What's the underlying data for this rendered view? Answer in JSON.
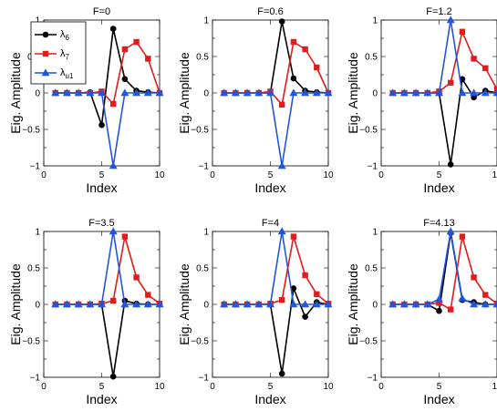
{
  "chart_data": [
    {
      "type": "line",
      "title": "F=0",
      "xlabel": "Index",
      "ylabel": "Eig. Amplitude",
      "xlim": [
        0,
        10
      ],
      "ylim": [
        -1,
        1
      ],
      "x": [
        1,
        2,
        3,
        4,
        5,
        6,
        7,
        8,
        9,
        10
      ],
      "series": [
        {
          "name": "λ6",
          "color": "#000000",
          "marker": "circle",
          "values": [
            0,
            0,
            0,
            0.01,
            -0.44,
            0.88,
            0.19,
            0.03,
            0.01,
            0
          ]
        },
        {
          "name": "λ7",
          "color": "#e41a1c",
          "marker": "square",
          "values": [
            0,
            0,
            0,
            0,
            0.02,
            -0.15,
            0.6,
            0.7,
            0.47,
            0
          ]
        },
        {
          "name": "λu1",
          "color": "#2255dd",
          "marker": "triangle",
          "values": [
            0,
            0,
            0,
            0,
            0,
            -1,
            0,
            0,
            0,
            0
          ]
        }
      ],
      "legend": "top-left"
    },
    {
      "type": "line",
      "title": "F=0.6",
      "xlabel": "Index",
      "ylabel": "Eig. Amplitude",
      "xlim": [
        0,
        10
      ],
      "ylim": [
        -1,
        1
      ],
      "x": [
        1,
        2,
        3,
        4,
        5,
        6,
        7,
        8,
        9,
        10
      ],
      "series": [
        {
          "name": "λ6",
          "color": "#000000",
          "marker": "circle",
          "values": [
            0,
            0,
            0,
            0,
            0,
            0.98,
            0.2,
            0.03,
            0.01,
            0
          ]
        },
        {
          "name": "λ7",
          "color": "#e41a1c",
          "marker": "square",
          "values": [
            0,
            0,
            0,
            0,
            0.02,
            -0.16,
            0.7,
            0.6,
            0.35,
            0
          ]
        },
        {
          "name": "λu1",
          "color": "#2255dd",
          "marker": "triangle",
          "values": [
            0,
            0,
            0,
            0,
            0,
            -1,
            0,
            0,
            0,
            0
          ]
        }
      ]
    },
    {
      "type": "line",
      "title": "F=1.2",
      "xlabel": "Index",
      "ylabel": "Eig. Amplitude",
      "xlim": [
        0,
        10
      ],
      "ylim": [
        -1,
        1
      ],
      "x": [
        1,
        2,
        3,
        4,
        5,
        6,
        7,
        8,
        9,
        10
      ],
      "series": [
        {
          "name": "λ6",
          "color": "#000000",
          "marker": "circle",
          "values": [
            0,
            0,
            0,
            0,
            0,
            -0.98,
            0.19,
            -0.06,
            0.03,
            0
          ]
        },
        {
          "name": "λ7",
          "color": "#e41a1c",
          "marker": "square",
          "values": [
            0,
            0,
            0,
            0,
            0.02,
            0.14,
            0.84,
            0.47,
            0.34,
            0.05
          ]
        },
        {
          "name": "λu1",
          "color": "#2255dd",
          "marker": "triangle",
          "values": [
            0,
            0,
            0,
            0,
            0,
            1,
            0,
            0,
            0,
            0
          ]
        }
      ]
    },
    {
      "type": "line",
      "title": "F=3.5",
      "xlabel": "Index",
      "ylabel": "Eig. Amplitude",
      "xlim": [
        0,
        10
      ],
      "ylim": [
        -1,
        1
      ],
      "x": [
        1,
        2,
        3,
        4,
        5,
        6,
        7,
        8,
        9,
        10
      ],
      "series": [
        {
          "name": "λ6",
          "color": "#000000",
          "marker": "circle",
          "values": [
            0,
            0,
            0,
            0,
            0,
            -0.99,
            0.05,
            0.01,
            0,
            0
          ]
        },
        {
          "name": "λ7",
          "color": "#e41a1c",
          "marker": "square",
          "values": [
            0,
            0,
            0,
            0,
            0.01,
            0.05,
            0.93,
            0.37,
            0.13,
            0.01
          ]
        },
        {
          "name": "λu1",
          "color": "#2255dd",
          "marker": "triangle",
          "values": [
            0,
            0,
            0,
            0,
            0,
            1,
            0,
            0,
            0,
            0
          ]
        }
      ]
    },
    {
      "type": "line",
      "title": "F=4",
      "xlabel": "Index",
      "ylabel": "Eig. Amplitude",
      "xlim": [
        0,
        10
      ],
      "ylim": [
        -1,
        1
      ],
      "x": [
        1,
        2,
        3,
        4,
        5,
        6,
        7,
        8,
        9,
        10
      ],
      "series": [
        {
          "name": "λ6",
          "color": "#000000",
          "marker": "circle",
          "values": [
            0,
            0,
            0,
            0,
            0,
            -0.95,
            0.22,
            -0.17,
            0.03,
            0
          ]
        },
        {
          "name": "λ7",
          "color": "#e41a1c",
          "marker": "square",
          "values": [
            0,
            0,
            0,
            0,
            0.01,
            0.06,
            0.93,
            0.4,
            0.14,
            0.01
          ]
        },
        {
          "name": "λu1",
          "color": "#2255dd",
          "marker": "triangle",
          "values": [
            0,
            0,
            0,
            0,
            0,
            1,
            0,
            0,
            0,
            0
          ]
        }
      ]
    },
    {
      "type": "line",
      "title": "F=4.13",
      "xlabel": "Index",
      "ylabel": "Eig. Amplitude",
      "xlim": [
        0,
        10
      ],
      "ylim": [
        -1,
        1
      ],
      "x": [
        1,
        2,
        3,
        4,
        5,
        6,
        7,
        8,
        9,
        10
      ],
      "series": [
        {
          "name": "λ6",
          "color": "#000000",
          "marker": "circle",
          "values": [
            0,
            0,
            0,
            0,
            -0.09,
            0.98,
            0.06,
            0.03,
            0,
            0
          ]
        },
        {
          "name": "λ7",
          "color": "#e41a1c",
          "marker": "square",
          "values": [
            0,
            0,
            0,
            0,
            0.02,
            -0.07,
            0.93,
            0.37,
            0.13,
            0.01
          ]
        },
        {
          "name": "λu1",
          "color": "#2255dd",
          "marker": "triangle",
          "values": [
            0,
            0,
            0,
            0,
            0.07,
            1,
            0.08,
            0,
            0,
            0
          ]
        }
      ]
    }
  ],
  "legend": {
    "entries": [
      {
        "symbol": "λ",
        "sub": "6"
      },
      {
        "symbol": "λ",
        "sub": "7"
      },
      {
        "symbol": "λ",
        "sub": "u1"
      }
    ]
  },
  "ticks": {
    "x": [
      "0",
      "5",
      "10"
    ],
    "y": [
      "1",
      "0.5",
      "0",
      "−0.5",
      "−1"
    ]
  }
}
